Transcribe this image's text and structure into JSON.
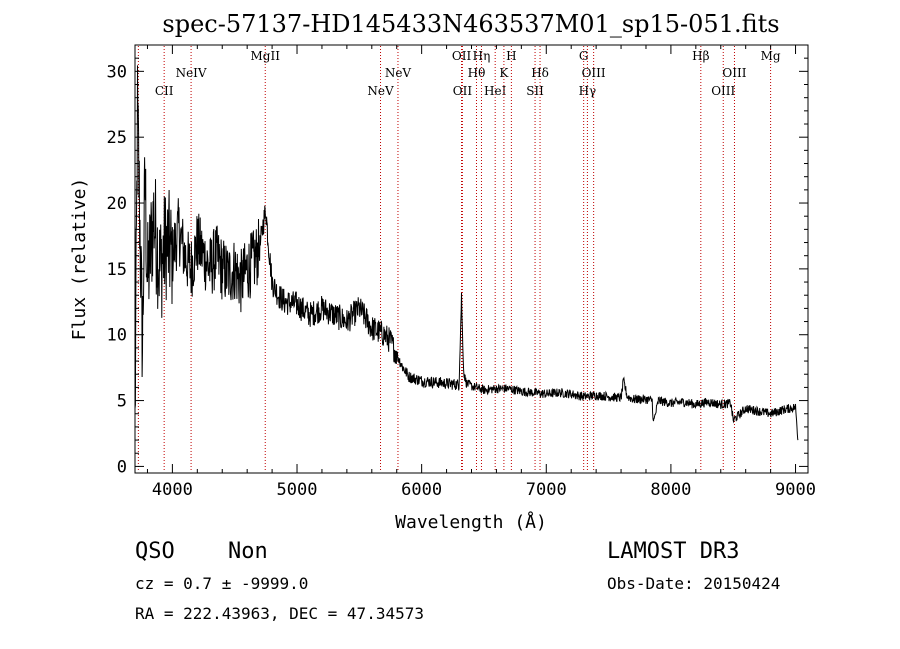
{
  "header": {
    "title": "spec-57137-HD145433N463537M01_sp15-051.fits"
  },
  "chart_data": {
    "type": "line",
    "title": "spec-57137-HD145433N463537M01_sp15-051.fits",
    "xlabel": "Wavelength (Å)",
    "ylabel": "Flux (relative)",
    "xlim": [
      3700,
      9100
    ],
    "ylim": [
      -0.5,
      32
    ],
    "xticks": [
      4000,
      5000,
      6000,
      7000,
      8000,
      9000
    ],
    "yticks": [
      0,
      5,
      10,
      15,
      20,
      25,
      30
    ],
    "grid": false,
    "series": [
      {
        "name": "spectrum",
        "x": [
          3700,
          3720,
          3740,
          3760,
          3780,
          3800,
          3850,
          3900,
          3950,
          4000,
          4050,
          4100,
          4150,
          4200,
          4250,
          4300,
          4350,
          4400,
          4450,
          4500,
          4550,
          4600,
          4650,
          4700,
          4730,
          4750,
          4770,
          4800,
          4850,
          4900,
          5000,
          5100,
          5200,
          5300,
          5400,
          5500,
          5600,
          5700,
          5750,
          5800,
          5850,
          5900,
          6000,
          6100,
          6200,
          6300,
          6320,
          6330,
          6340,
          6360,
          6400,
          6500,
          6600,
          6700,
          6800,
          6900,
          7000,
          7100,
          7200,
          7300,
          7400,
          7500,
          7600,
          7620,
          7650,
          7700,
          7800,
          7850,
          7860,
          7900,
          8000,
          8100,
          8200,
          8300,
          8400,
          8480,
          8500,
          8600,
          8700,
          8800,
          8900,
          9000,
          9020
        ],
        "y": [
          3,
          27,
          18,
          9,
          22,
          14,
          19,
          15,
          17,
          16,
          18,
          16,
          15,
          17,
          16,
          15,
          16,
          15,
          14.5,
          15,
          14,
          15,
          15.5,
          16.5,
          18.5,
          19.5,
          17,
          14,
          13,
          12.5,
          12.3,
          11.5,
          12,
          11.5,
          11,
          12,
          10.5,
          10,
          9.5,
          8.5,
          7.5,
          6.8,
          6.5,
          6.4,
          6.3,
          6.2,
          13,
          9,
          7,
          6.3,
          6.1,
          5.8,
          5.9,
          5.9,
          5.7,
          5.6,
          5.5,
          5.6,
          5.5,
          5.3,
          5.4,
          5.3,
          5.2,
          6.5,
          5.3,
          5.1,
          5.1,
          5.0,
          3.3,
          5.0,
          4.8,
          4.9,
          4.7,
          4.9,
          4.7,
          4.8,
          3.5,
          4.4,
          4.2,
          4.0,
          4.3,
          4.5,
          2
        ]
      }
    ],
    "lines": [
      {
        "x": 3727,
        "label": "",
        "row": 2
      },
      {
        "x": 3934,
        "label": "CII",
        "row": 2
      },
      {
        "x": 4150,
        "label": "NeIV",
        "row": 1
      },
      {
        "x": 4745,
        "label": "MgII",
        "row": 0
      },
      {
        "x": 5670,
        "label": "NeV",
        "row": 2
      },
      {
        "x": 5810,
        "label": "NeV",
        "row": 1
      },
      {
        "x": 6320,
        "label": "OII",
        "row": 0
      },
      {
        "x": 6327,
        "label": "OII",
        "row": 2
      },
      {
        "x": 6440,
        "label": "Hθ",
        "row": 1
      },
      {
        "x": 6480,
        "label": "Hη",
        "row": 0
      },
      {
        "x": 6590,
        "label": "HeI",
        "row": 2
      },
      {
        "x": 6660,
        "label": "K",
        "row": 1
      },
      {
        "x": 6720,
        "label": "H",
        "row": 0
      },
      {
        "x": 6910,
        "label": "SII",
        "row": 2
      },
      {
        "x": 6950,
        "label": "Hδ",
        "row": 1
      },
      {
        "x": 7300,
        "label": "G",
        "row": 0
      },
      {
        "x": 7330,
        "label": "Hγ",
        "row": 2
      },
      {
        "x": 7380,
        "label": "OIII",
        "row": 1
      },
      {
        "x": 8240,
        "label": "Hβ",
        "row": 0
      },
      {
        "x": 8420,
        "label": "OIII",
        "row": 2
      },
      {
        "x": 8510,
        "label": "OIII",
        "row": 1
      },
      {
        "x": 8800,
        "label": "Mg",
        "row": 0
      }
    ],
    "colors": {
      "spectrum": "#000000",
      "line_markers": "#c00000"
    }
  },
  "info": {
    "class": "QSO",
    "subclass": "Non",
    "survey": "LAMOST DR3",
    "cz": "cz = 0.7 ± -9999.0",
    "obs_date": "Obs-Date: 20150424",
    "coords": "RA = 222.43963, DEC =  47.34573"
  }
}
